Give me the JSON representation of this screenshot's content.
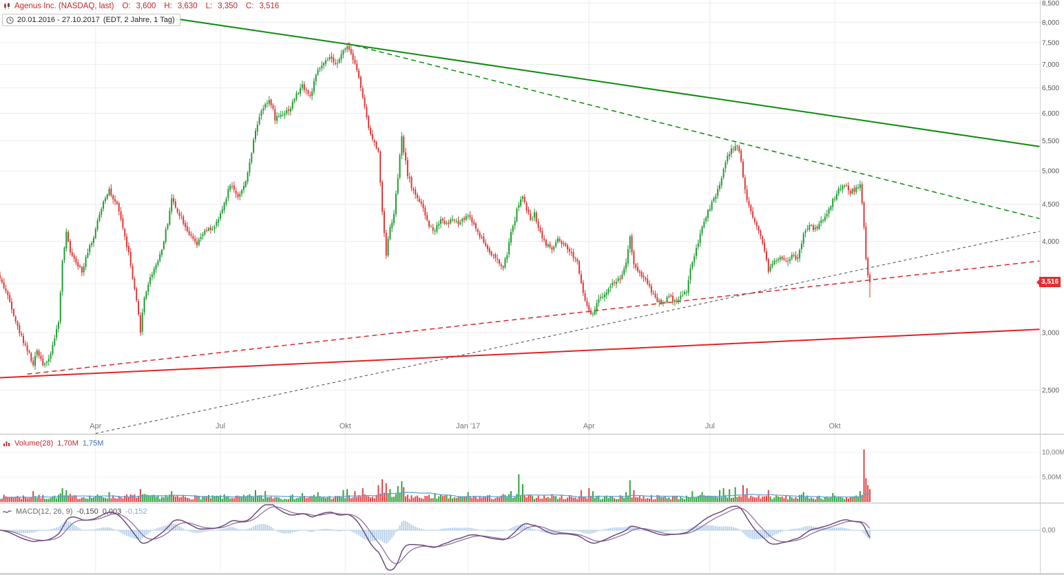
{
  "header": {
    "title": "Agenus Inc. (NASDAQ, last)",
    "ohlc": {
      "o_label": "O:",
      "o": "3,600",
      "h_label": "H:",
      "h": "3,630",
      "l_label": "L:",
      "l": "3,350",
      "c_label": "C:",
      "c": "3,516"
    },
    "date_range": "20.01.2016 - 27.10.2017",
    "date_meta": "(EDT, 2 Jahre, 1 Tag)"
  },
  "price_tag": "3,516",
  "panels": {
    "volume": {
      "legend_name": "Volume(28)",
      "legend_v1": "1,70M",
      "legend_v2": "1,75M",
      "y_ticks": [
        {
          "label": "10,00M",
          "value": 10
        },
        {
          "label": "5,00M",
          "value": 5
        }
      ]
    },
    "macd": {
      "legend_name": "MACD(12, 26, 9)",
      "legend_v1": "-0,150",
      "legend_v2": "0,003",
      "legend_v3": "-0,152",
      "y_ticks": [
        {
          "label": "0,00",
          "value": 0
        }
      ]
    }
  },
  "chart_data": {
    "type": "candlestick",
    "symbol": "Agenus Inc.",
    "exchange": "NASDAQ",
    "period": "1 Tag",
    "range": "20.01.2016 - 27.10.2017",
    "scale": "log",
    "last_ohlc": {
      "open": 3.6,
      "high": 3.63,
      "low": 3.35,
      "close": 3.516
    },
    "y_axis": {
      "ticks": [
        {
          "label": "8,500",
          "price": 8.5
        },
        {
          "label": "8,000",
          "price": 8.0
        },
        {
          "label": "7,500",
          "price": 7.5
        },
        {
          "label": "7,000",
          "price": 7.0
        },
        {
          "label": "6,500",
          "price": 6.5
        },
        {
          "label": "6,000",
          "price": 6.0
        },
        {
          "label": "5,500",
          "price": 5.5
        },
        {
          "label": "5,000",
          "price": 5.0
        },
        {
          "label": "4,500",
          "price": 4.5
        },
        {
          "label": "4,000",
          "price": 4.0
        },
        {
          "label": "3,500",
          "price": 3.5
        },
        {
          "label": "3,000",
          "price": 3.0
        },
        {
          "label": "2,500",
          "price": 2.5
        }
      ]
    },
    "x_axis": {
      "ticks": [
        {
          "label": "Apr",
          "day": 49
        },
        {
          "label": "Jul",
          "day": 113
        },
        {
          "label": "Okt",
          "day": 177
        },
        {
          "label": "Jan '17",
          "day": 240
        },
        {
          "label": "Apr",
          "day": 302
        },
        {
          "label": "Jul",
          "day": 364
        },
        {
          "label": "Okt",
          "day": 428
        }
      ]
    },
    "days_total": 447,
    "days_projection": 533,
    "close_keyframes": [
      [
        0,
        3.55
      ],
      [
        3,
        3.42
      ],
      [
        6,
        3.25
      ],
      [
        9,
        3.05
      ],
      [
        12,
        2.92
      ],
      [
        15,
        2.8
      ],
      [
        17,
        2.7
      ],
      [
        19,
        2.84
      ],
      [
        22,
        2.72
      ],
      [
        25,
        2.74
      ],
      [
        28,
        2.95
      ],
      [
        30,
        3.1
      ],
      [
        32,
        3.75
      ],
      [
        34,
        4.1
      ],
      [
        36,
        3.88
      ],
      [
        38,
        3.8
      ],
      [
        40,
        3.72
      ],
      [
        42,
        3.62
      ],
      [
        44,
        3.82
      ],
      [
        46,
        3.95
      ],
      [
        48,
        4.05
      ],
      [
        51,
        4.35
      ],
      [
        53,
        4.55
      ],
      [
        56,
        4.72
      ],
      [
        58,
        4.55
      ],
      [
        60,
        4.48
      ],
      [
        62,
        4.3
      ],
      [
        64,
        4.05
      ],
      [
        66,
        3.85
      ],
      [
        68,
        3.55
      ],
      [
        70,
        3.3
      ],
      [
        72,
        3.02
      ],
      [
        74,
        3.35
      ],
      [
        76,
        3.5
      ],
      [
        78,
        3.62
      ],
      [
        80,
        3.72
      ],
      [
        83,
        3.9
      ],
      [
        86,
        4.25
      ],
      [
        88,
        4.58
      ],
      [
        90,
        4.45
      ],
      [
        93,
        4.32
      ],
      [
        95,
        4.2
      ],
      [
        98,
        4.05
      ],
      [
        101,
        3.95
      ],
      [
        104,
        4.1
      ],
      [
        107,
        4.15
      ],
      [
        110,
        4.18
      ],
      [
        113,
        4.35
      ],
      [
        116,
        4.6
      ],
      [
        118,
        4.8
      ],
      [
        120,
        4.7
      ],
      [
        122,
        4.62
      ],
      [
        125,
        4.75
      ],
      [
        128,
        5.1
      ],
      [
        131,
        5.7
      ],
      [
        134,
        6.05
      ],
      [
        136,
        6.2
      ],
      [
        138,
        6.25
      ],
      [
        140,
        6.05
      ],
      [
        141,
        5.9
      ],
      [
        143,
        5.95
      ],
      [
        146,
        6.02
      ],
      [
        149,
        6.1
      ],
      [
        151,
        6.3
      ],
      [
        153,
        6.42
      ],
      [
        155,
        6.55
      ],
      [
        157,
        6.45
      ],
      [
        159,
        6.32
      ],
      [
        161,
        6.6
      ],
      [
        163,
        6.88
      ],
      [
        166,
        7.0
      ],
      [
        169,
        7.15
      ],
      [
        171,
        7.02
      ],
      [
        174,
        7.1
      ],
      [
        176,
        7.3
      ],
      [
        178,
        7.45
      ],
      [
        180,
        7.25
      ],
      [
        182,
        7.05
      ],
      [
        184,
        6.7
      ],
      [
        186,
        6.3
      ],
      [
        188,
        5.9
      ],
      [
        190,
        5.6
      ],
      [
        192,
        5.45
      ],
      [
        194,
        5.35
      ],
      [
        195,
        4.8
      ],
      [
        196,
        4.4
      ],
      [
        198,
        3.85
      ],
      [
        200,
        4.18
      ],
      [
        202,
        4.35
      ],
      [
        204,
        4.9
      ],
      [
        206,
        5.55
      ],
      [
        207,
        5.32
      ],
      [
        209,
        4.95
      ],
      [
        211,
        4.75
      ],
      [
        214,
        4.6
      ],
      [
        217,
        4.42
      ],
      [
        220,
        4.2
      ],
      [
        223,
        4.15
      ],
      [
        226,
        4.3
      ],
      [
        229,
        4.22
      ],
      [
        232,
        4.3
      ],
      [
        235,
        4.22
      ],
      [
        238,
        4.3
      ],
      [
        240,
        4.35
      ],
      [
        243,
        4.22
      ],
      [
        246,
        4.08
      ],
      [
        249,
        3.95
      ],
      [
        252,
        3.85
      ],
      [
        255,
        3.76
      ],
      [
        258,
        3.68
      ],
      [
        260,
        3.85
      ],
      [
        262,
        4.1
      ],
      [
        264,
        4.3
      ],
      [
        266,
        4.52
      ],
      [
        268,
        4.6
      ],
      [
        270,
        4.42
      ],
      [
        272,
        4.3
      ],
      [
        274,
        4.36
      ],
      [
        277,
        4.12
      ],
      [
        280,
        3.96
      ],
      [
        283,
        3.9
      ],
      [
        286,
        4.02
      ],
      [
        288,
        3.96
      ],
      [
        291,
        3.9
      ],
      [
        294,
        3.82
      ],
      [
        296,
        3.76
      ],
      [
        298,
        3.52
      ],
      [
        300,
        3.32
      ],
      [
        302,
        3.2
      ],
      [
        304,
        3.16
      ],
      [
        306,
        3.3
      ],
      [
        309,
        3.36
      ],
      [
        312,
        3.46
      ],
      [
        315,
        3.52
      ],
      [
        318,
        3.56
      ],
      [
        321,
        3.72
      ],
      [
        323,
        4.05
      ],
      [
        325,
        3.72
      ],
      [
        328,
        3.62
      ],
      [
        331,
        3.56
      ],
      [
        334,
        3.42
      ],
      [
        337,
        3.32
      ],
      [
        340,
        3.3
      ],
      [
        343,
        3.36
      ],
      [
        346,
        3.32
      ],
      [
        349,
        3.36
      ],
      [
        352,
        3.42
      ],
      [
        355,
        3.76
      ],
      [
        358,
        3.96
      ],
      [
        360,
        4.2
      ],
      [
        363,
        4.4
      ],
      [
        366,
        4.56
      ],
      [
        369,
        4.76
      ],
      [
        371,
        5.05
      ],
      [
        374,
        5.3
      ],
      [
        377,
        5.42
      ],
      [
        379,
        5.35
      ],
      [
        381,
        4.9
      ],
      [
        383,
        4.56
      ],
      [
        385,
        4.4
      ],
      [
        388,
        4.2
      ],
      [
        391,
        4.0
      ],
      [
        394,
        3.65
      ],
      [
        397,
        3.76
      ],
      [
        400,
        3.82
      ],
      [
        403,
        3.76
      ],
      [
        406,
        3.82
      ],
      [
        409,
        3.78
      ],
      [
        412,
        4.1
      ],
      [
        415,
        4.2
      ],
      [
        418,
        4.16
      ],
      [
        421,
        4.26
      ],
      [
        424,
        4.36
      ],
      [
        427,
        4.56
      ],
      [
        430,
        4.7
      ],
      [
        433,
        4.8
      ],
      [
        436,
        4.68
      ],
      [
        439,
        4.72
      ],
      [
        441,
        4.78
      ],
      [
        443,
        4.2
      ],
      [
        444,
        3.8
      ],
      [
        445,
        3.6
      ],
      [
        446,
        3.516
      ]
    ],
    "volume_ma_period": 28,
    "volume_spikes_m": [
      [
        17,
        2.2
      ],
      [
        32,
        2.8
      ],
      [
        34,
        2.4
      ],
      [
        56,
        2.0
      ],
      [
        72,
        2.6
      ],
      [
        88,
        2.2
      ],
      [
        131,
        2.4
      ],
      [
        136,
        2.2
      ],
      [
        155,
        1.8
      ],
      [
        163,
        2.0
      ],
      [
        176,
        2.4
      ],
      [
        178,
        2.6
      ],
      [
        182,
        2.2
      ],
      [
        186,
        2.8
      ],
      [
        194,
        3.4
      ],
      [
        196,
        4.6
      ],
      [
        198,
        3.8
      ],
      [
        200,
        2.6
      ],
      [
        204,
        3.2
      ],
      [
        206,
        4.2
      ],
      [
        207,
        3.0
      ],
      [
        223,
        1.8
      ],
      [
        240,
        2.0
      ],
      [
        258,
        1.6
      ],
      [
        262,
        2.2
      ],
      [
        266,
        5.6
      ],
      [
        268,
        3.6
      ],
      [
        283,
        1.6
      ],
      [
        298,
        2.4
      ],
      [
        302,
        2.8
      ],
      [
        304,
        2.2
      ],
      [
        321,
        2.0
      ],
      [
        323,
        4.4
      ],
      [
        325,
        2.4
      ],
      [
        355,
        2.2
      ],
      [
        360,
        2.0
      ],
      [
        369,
        2.4
      ],
      [
        371,
        2.8
      ],
      [
        374,
        2.6
      ],
      [
        377,
        3.0
      ],
      [
        381,
        3.4
      ],
      [
        383,
        2.8
      ],
      [
        394,
        2.4
      ],
      [
        412,
        2.0
      ],
      [
        427,
        1.8
      ],
      [
        441,
        2.2
      ],
      [
        443,
        10.6
      ],
      [
        444,
        4.8
      ],
      [
        445,
        3.4
      ],
      [
        446,
        2.6
      ]
    ],
    "macd_params": [
      12,
      26,
      9
    ],
    "trendlines": [
      {
        "name": "descending-resistance-outer",
        "style": "solid",
        "color": "#0b8a0b",
        "width": 2,
        "d1": 90,
        "p1": 8.09,
        "d2": 533,
        "p2": 5.4
      },
      {
        "name": "descending-resistance-inner",
        "style": "dashed",
        "color": "#0b8a0b",
        "width": 1.5,
        "d1": 178,
        "p1": 7.48,
        "d2": 533,
        "p2": 4.3
      },
      {
        "name": "ascending-support-outer",
        "style": "solid",
        "color": "#e02222",
        "width": 2,
        "d1": 0,
        "p1": 2.6,
        "d2": 533,
        "p2": 3.03
      },
      {
        "name": "ascending-support-inner",
        "style": "dashed",
        "color": "#e02222",
        "width": 1.5,
        "d1": 14,
        "p1": 2.63,
        "d2": 533,
        "p2": 3.76
      },
      {
        "name": "ascending-trend-minor",
        "style": "dashed",
        "color": "#444444",
        "width": 1,
        "d1": 49,
        "p1": 2.18,
        "d2": 533,
        "p2": 4.13
      }
    ],
    "colors": {
      "up": "#1e9b2e",
      "down": "#e03535",
      "volume_ma": "#5b9bd5",
      "macd_line": "#6d4a78",
      "signal_line": "#9070a0",
      "histogram": "#b8d2ea",
      "price_tag": "#e22e2e",
      "title_text": "#c2272d"
    }
  }
}
